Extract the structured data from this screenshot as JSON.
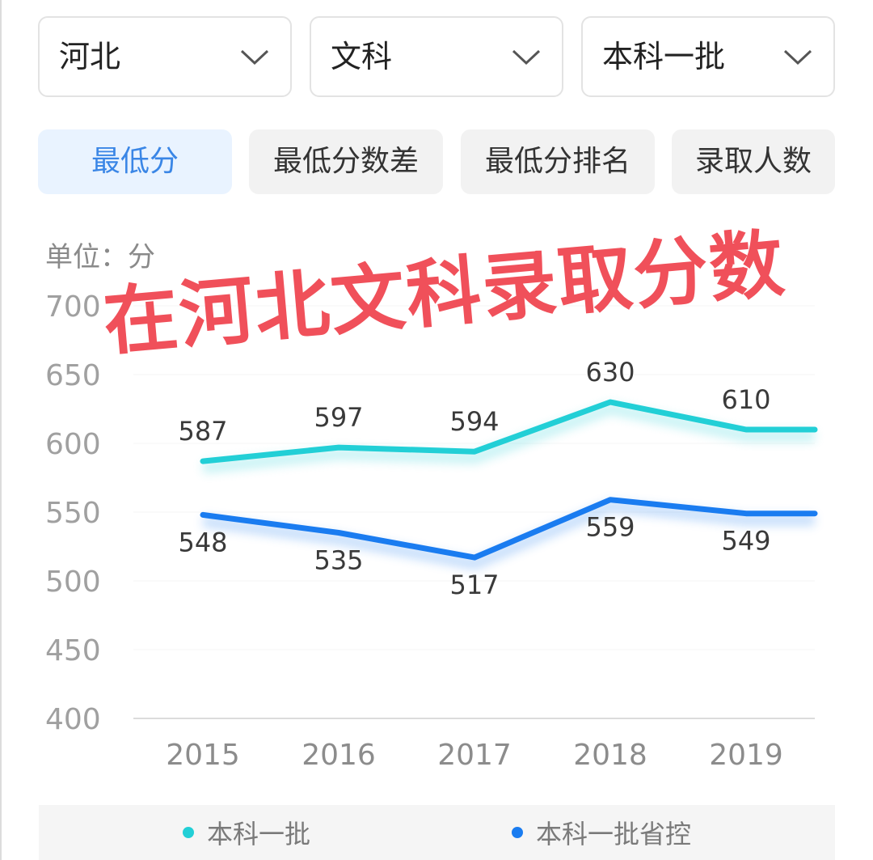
{
  "filters": {
    "province": "河北",
    "subject": "文科",
    "batch": "本科一批"
  },
  "tabs": [
    {
      "label": "最低分",
      "active": true
    },
    {
      "label": "最低分数差",
      "active": false
    },
    {
      "label": "最低分排名",
      "active": false
    },
    {
      "label": "录取人数",
      "active": false
    }
  ],
  "unit_label": "单位：分",
  "watermark": "在河北文科录取分数",
  "colors": {
    "accent": "#3a86e6",
    "series1": "#22cfd6",
    "series2": "#1a7cf0",
    "watermark": "#f0505a"
  },
  "chart_data": {
    "type": "line",
    "categories": [
      "2015",
      "2016",
      "2017",
      "2018",
      "2019"
    ],
    "x_extends_right": true,
    "yticks": [
      "700",
      "650",
      "600",
      "550",
      "500",
      "450",
      "400"
    ],
    "ylim": [
      400,
      700
    ],
    "grid": true,
    "legend_position": "bottom",
    "series": [
      {
        "name": "本科一批",
        "values": [
          587,
          597,
          594,
          630,
          610
        ],
        "labels": [
          "587",
          "597",
          "594",
          "630",
          "610"
        ],
        "color": "#22cfd6"
      },
      {
        "name": "本科一批省控",
        "values": [
          548,
          535,
          517,
          559,
          549
        ],
        "labels": [
          "548",
          "535",
          "517",
          "559",
          "549"
        ],
        "color": "#1a7cf0"
      }
    ]
  }
}
